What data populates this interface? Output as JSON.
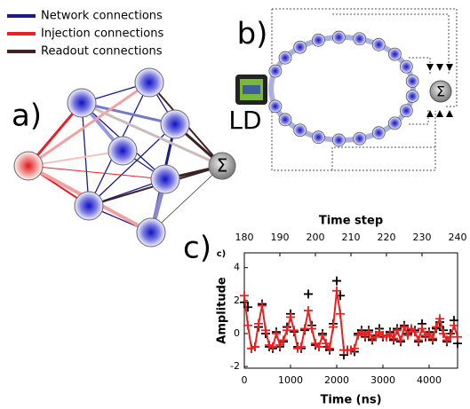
{
  "legend": [
    {
      "label": "Network connections",
      "color": "#1a1a8c"
    },
    {
      "label": "Injection connections",
      "color": "#e8202a"
    },
    {
      "label": "Readout connections",
      "color": "#3d2222"
    }
  ],
  "panels": {
    "a": "a)",
    "b": "b)"
  },
  "labels": {
    "ld": "LD",
    "sum_a": "Σ",
    "sum_b": "Σ"
  },
  "chart_data": {
    "type": "line",
    "panel_label": "c)",
    "small_label": "c)",
    "x_label": "Time (ns)",
    "x2_label": "Time step",
    "y_label": "Amplitude",
    "x_axis": "x2",
    "x": [
      180,
      181,
      182,
      183,
      184,
      185,
      186,
      187,
      188,
      189,
      190,
      191,
      192,
      193,
      194,
      195,
      196,
      197,
      198,
      199,
      200,
      201,
      202,
      203,
      204,
      205,
      206,
      207,
      208,
      209,
      210,
      211,
      212,
      213,
      214,
      215,
      216,
      217,
      218,
      219,
      220,
      221,
      222,
      223,
      224,
      225,
      226,
      227,
      228,
      229,
      230,
      231,
      232,
      233,
      234,
      235,
      236,
      237,
      238,
      239,
      240
    ],
    "xlim": [
      0,
      4615
    ],
    "xticks": [
      0,
      1000,
      2000,
      3000,
      4000
    ],
    "x2lim": [
      180,
      240
    ],
    "x2ticks": [
      180,
      190,
      200,
      210,
      220,
      230,
      240
    ],
    "ylim": [
      -2.1,
      4.9
    ],
    "yticks": [
      4,
      2,
      0,
      -2
    ],
    "series": [
      {
        "color": "#000000",
        "marker": "+",
        "line": false,
        "values": [
          1.9,
          1.6,
          -0.9,
          -0.8,
          0.4,
          1.8,
          0.0,
          -0.8,
          -0.9,
          0.1,
          -0.8,
          -0.5,
          0.4,
          1.2,
          0.1,
          -0.8,
          -0.9,
          0.2,
          2.4,
          0.5,
          -0.7,
          -0.8,
          0.0,
          -0.8,
          -1.0,
          0.6,
          3.2,
          2.3,
          -1.3,
          -1.0,
          -1.0,
          -1.1,
          0.0,
          0.2,
          -0.2,
          0.2,
          -0.4,
          -0.1,
          0.3,
          -0.2,
          -0.1,
          0.1,
          -0.4,
          0.3,
          -0.5,
          0.5,
          0.0,
          0.2,
          0.2,
          -0.5,
          0.6,
          -0.2,
          0.1,
          -0.4,
          0.3,
          0.7,
          0.2,
          -0.5,
          0.0,
          0.8,
          -0.6
        ]
      },
      {
        "color": "#e8201f",
        "marker": "+",
        "line": true,
        "values": [
          2.3,
          0.5,
          -0.9,
          -0.8,
          0.6,
          1.7,
          0.2,
          -0.7,
          -0.8,
          0.0,
          -0.7,
          -0.4,
          0.2,
          1.0,
          0.2,
          -0.9,
          -0.8,
          0.3,
          1.4,
          0.3,
          -0.6,
          -0.8,
          -0.1,
          -0.6,
          -0.9,
          0.4,
          2.6,
          1.2,
          -1.0,
          -1.0,
          -1.0,
          -0.9,
          -0.1,
          0.1,
          -0.1,
          0.1,
          -0.3,
          -0.2,
          0.1,
          -0.1,
          -0.2,
          0.0,
          -0.3,
          0.2,
          -0.4,
          0.4,
          -0.1,
          0.3,
          0.1,
          -0.4,
          0.3,
          -0.1,
          0.0,
          -0.3,
          0.4,
          0.9,
          0.0,
          -0.4,
          -0.2,
          0.5,
          -0.2
        ]
      }
    ]
  }
}
